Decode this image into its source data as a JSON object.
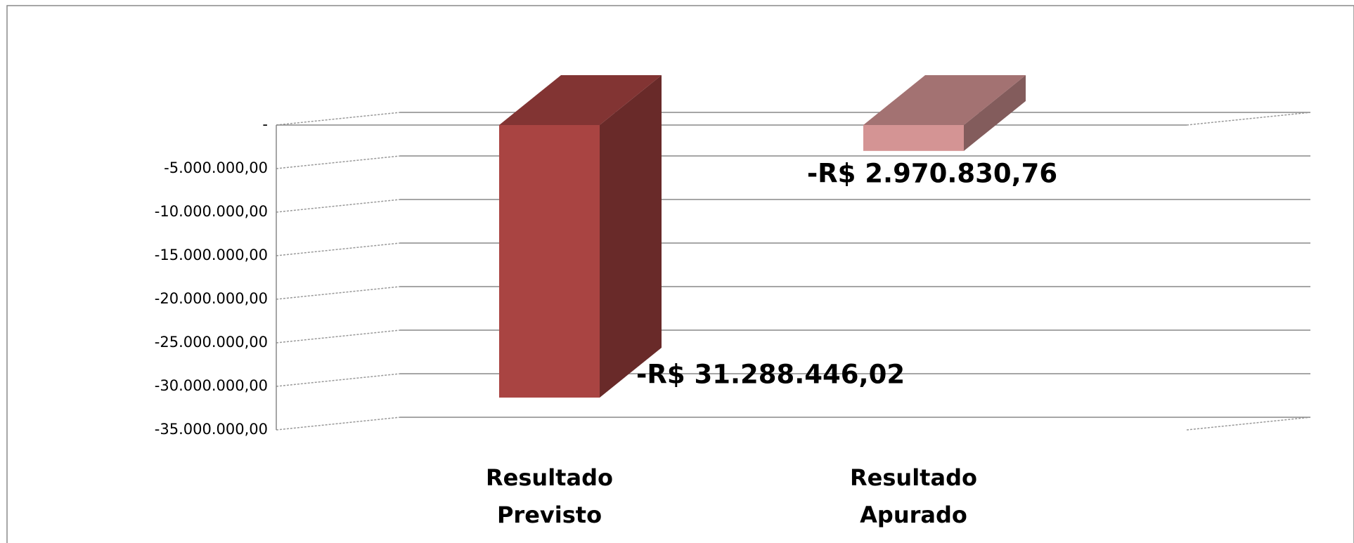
{
  "chart_data": {
    "type": "bar3d",
    "categories": [
      "Resultado Previsto",
      "Resultado Apurado"
    ],
    "values": [
      -31288446.02,
      -2970830.76
    ],
    "value_labels": [
      "-R$ 31.288.446,02",
      "-R$ 2.970.830,76"
    ],
    "colors": [
      "#a94442",
      "#d49494"
    ],
    "ylim": [
      -35000000,
      0
    ],
    "yticks": [
      {
        "value": 0,
        "label": "-"
      },
      {
        "value": -5000000,
        "label": "-5.000.000,00"
      },
      {
        "value": -10000000,
        "label": "-10.000.000,00"
      },
      {
        "value": -15000000,
        "label": "-15.000.000,00"
      },
      {
        "value": -20000000,
        "label": "-20.000.000,00"
      },
      {
        "value": -25000000,
        "label": "-25.000.000,00"
      },
      {
        "value": -30000000,
        "label": "-30.000.000,00"
      },
      {
        "value": -35000000,
        "label": "-35.000.000,00"
      }
    ],
    "grid": true
  }
}
